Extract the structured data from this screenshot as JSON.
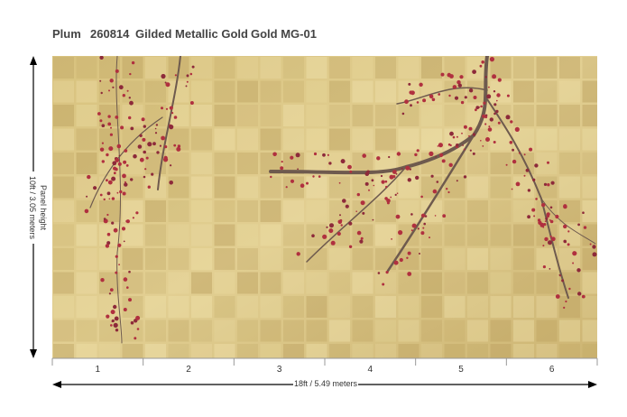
{
  "header": {
    "items": [
      "Plum",
      "260814",
      "Gilded Metallic Gold",
      "Gold MG-01"
    ]
  },
  "panels": [
    "1",
    "2",
    "3",
    "4",
    "5",
    "6"
  ],
  "height": {
    "label": "Panel height",
    "value": "10ft / 3.05 meters"
  },
  "width": {
    "value": "18ft / 5.49 meters"
  }
}
